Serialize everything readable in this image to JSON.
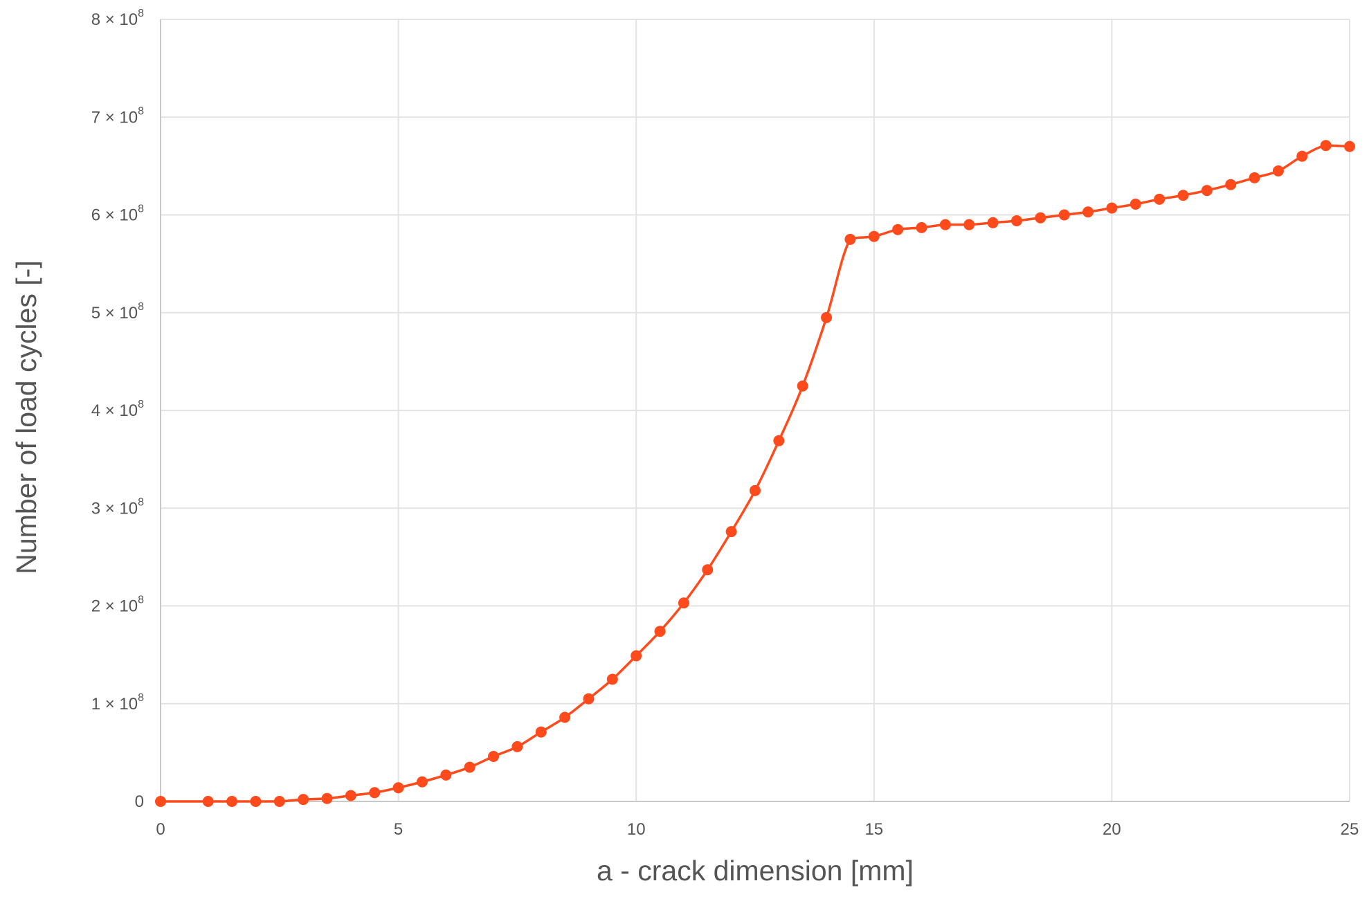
{
  "chart_data": {
    "type": "line",
    "title": "",
    "xlabel": "a - crack dimension [mm]",
    "ylabel": "Number of load cycles [-]",
    "xlim": [
      0,
      25
    ],
    "ylim": [
      0,
      800000000
    ],
    "xticks": [
      0,
      5,
      10,
      15,
      20,
      25
    ],
    "xtick_labels": [
      "0",
      "5",
      "10",
      "15",
      "20",
      "25"
    ],
    "yticks": [
      {
        "value": 0,
        "mantissa": "0",
        "exponent": ""
      },
      {
        "value": 100000000,
        "mantissa": "1 × 10",
        "exponent": "8"
      },
      {
        "value": 200000000,
        "mantissa": "2 × 10",
        "exponent": "8"
      },
      {
        "value": 300000000,
        "mantissa": "3 × 10",
        "exponent": "8"
      },
      {
        "value": 400000000,
        "mantissa": "4 × 10",
        "exponent": "8"
      },
      {
        "value": 500000000,
        "mantissa": "5 × 10",
        "exponent": "8"
      },
      {
        "value": 600000000,
        "mantissa": "6 × 10",
        "exponent": "8"
      },
      {
        "value": 700000000,
        "mantissa": "7 × 10",
        "exponent": "8"
      },
      {
        "value": 800000000,
        "mantissa": "8 × 10",
        "exponent": "8"
      }
    ],
    "grid": true,
    "legend": "none",
    "series": [
      {
        "color": "#ff4a1c",
        "marker": "circle",
        "x": [
          0,
          1,
          1.5,
          2,
          2.5,
          3,
          3.5,
          4,
          4.5,
          5,
          5.5,
          6,
          6.5,
          7,
          7.5,
          8,
          8.5,
          9,
          9.5,
          10,
          10.5,
          11,
          11.5,
          12,
          12.5,
          13,
          13.5,
          14,
          14.5,
          15,
          15.5,
          16,
          16.5,
          17,
          17.5,
          18,
          18.5,
          19,
          19.5,
          20,
          20.5,
          21,
          21.5,
          22,
          22.5,
          23,
          23.5,
          24,
          24.5,
          25
        ],
        "y": [
          0,
          0,
          0,
          0,
          0,
          2000000,
          3000000,
          6000000,
          9000000,
          14000000,
          20000000,
          27000000,
          35000000,
          46000000,
          56000000,
          71000000,
          86000000,
          105000000,
          125000000,
          149000000,
          174000000,
          203000000,
          237000000,
          276000000,
          318000000,
          369000000,
          425000000,
          495000000,
          575000000,
          578000000,
          585000000,
          587000000,
          590000000,
          590000000,
          592000000,
          594000000,
          597000000,
          600000000,
          603000000,
          607000000,
          611000000,
          616000000,
          620000000,
          625000000,
          631000000,
          638000000,
          645000000,
          660000000,
          671000000,
          670000000
        ]
      }
    ]
  }
}
